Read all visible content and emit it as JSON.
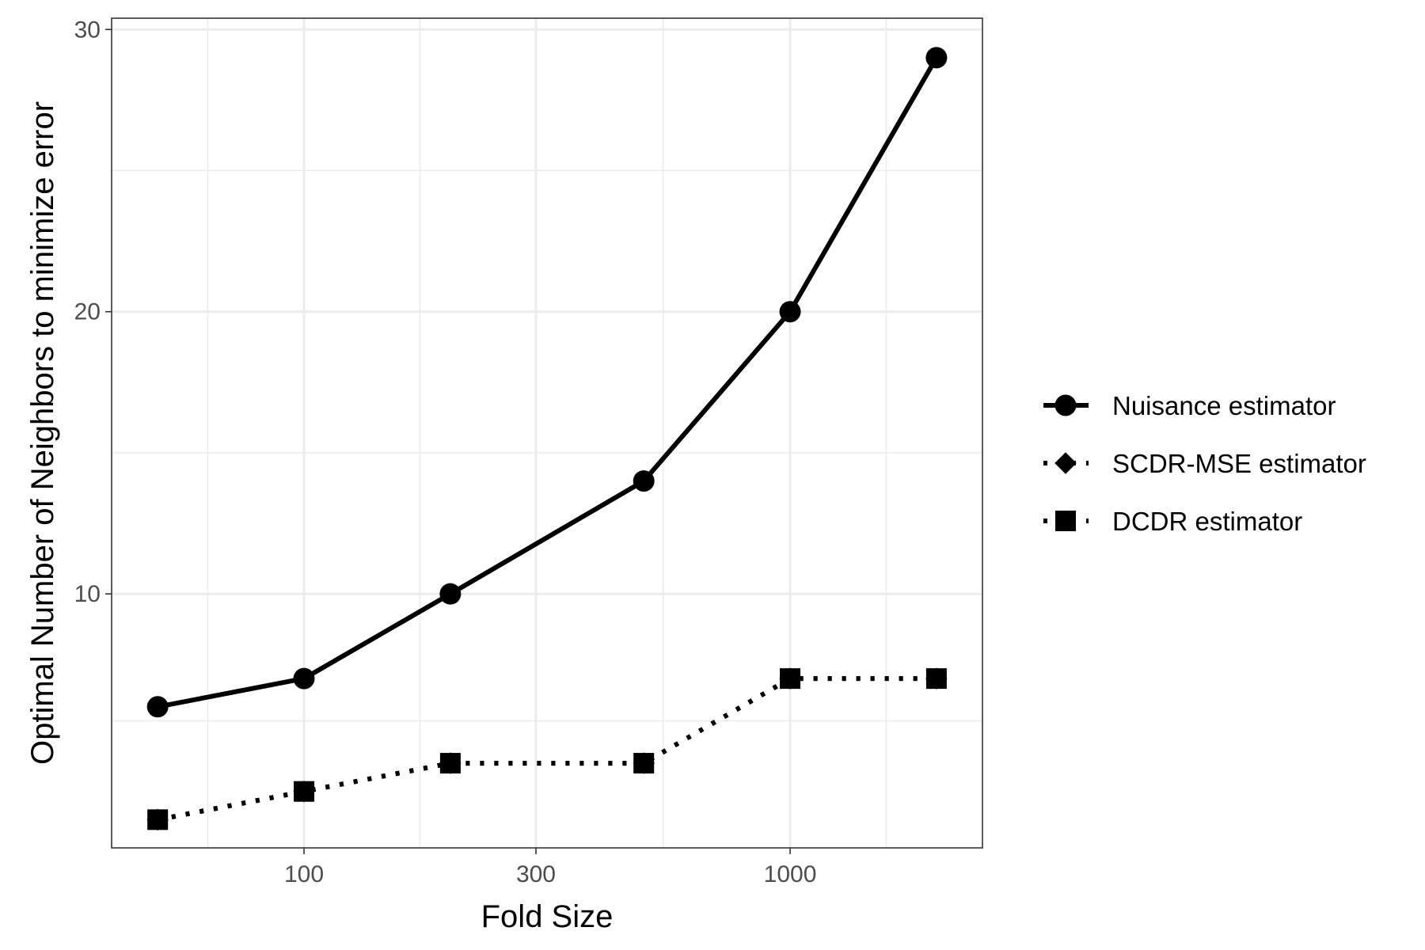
{
  "chart_data": {
    "type": "line",
    "xlabel": "Fold Size",
    "ylabel": "Optimal Number of Neighbors to minimize error",
    "x_scale": "log10",
    "xlim": [
      40.2,
      2487
    ],
    "ylim": [
      1.0,
      30.4
    ],
    "x_ticks": [
      100,
      300,
      1000
    ],
    "x_tick_labels": [
      "100",
      "300",
      "1000"
    ],
    "y_ticks": [
      10,
      20,
      30
    ],
    "y_tick_labels": [
      "10",
      "20",
      "30"
    ],
    "grid": true,
    "legend_position": "right",
    "x": [
      50,
      100,
      200,
      500,
      1000,
      2000
    ],
    "series": [
      {
        "name": "Nuisance estimator",
        "values": [
          6,
          7,
          10,
          14,
          20,
          29
        ],
        "line_style": "solid",
        "marker": "circle"
      },
      {
        "name": "SCDR-MSE estimator",
        "values": [
          2,
          3,
          4,
          4,
          7,
          7
        ],
        "line_style": "dotted",
        "marker": "diamond"
      },
      {
        "name": "DCDR estimator",
        "values": [
          2,
          3,
          4,
          4,
          7,
          7
        ],
        "line_style": "dotted",
        "marker": "square"
      }
    ],
    "colors": {
      "line": "#000000",
      "grid": "#ebebeb",
      "panel_border": "#333333",
      "tick_text": "#4d4d4d"
    }
  }
}
